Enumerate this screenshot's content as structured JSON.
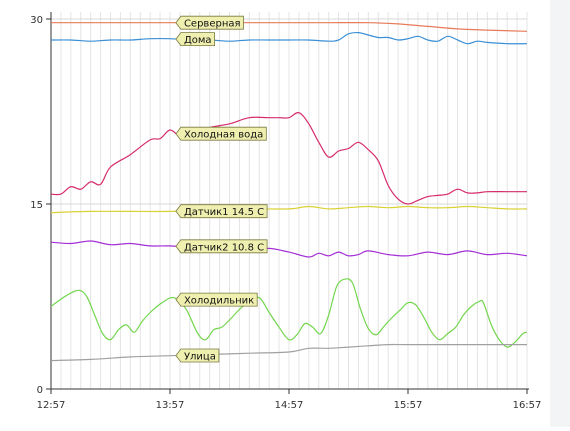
{
  "chart_data": {
    "type": "line",
    "title": "",
    "xlabel": "",
    "ylabel": "",
    "ylim": [
      0,
      30
    ],
    "yticks": [
      0,
      15,
      30
    ],
    "xlim": [
      0,
      240
    ],
    "xticks": [
      {
        "t": 0,
        "label": "12:57"
      },
      {
        "t": 60,
        "label": "13:57"
      },
      {
        "t": 120,
        "label": "14:57"
      },
      {
        "t": 180,
        "label": "15:57"
      },
      {
        "t": 240,
        "label": "16:57"
      }
    ],
    "grid": {
      "vertical_minor": true,
      "horizontal": true
    },
    "legend": "inline-labels",
    "series": [
      {
        "name": "Серверная",
        "color": "#e87a5a",
        "label_t": 63,
        "points": [
          [
            0,
            29.7
          ],
          [
            20,
            29.7
          ],
          [
            40,
            29.7
          ],
          [
            60,
            29.7
          ],
          [
            80,
            29.7
          ],
          [
            100,
            29.7
          ],
          [
            120,
            29.7
          ],
          [
            140,
            29.7
          ],
          [
            160,
            29.7
          ],
          [
            175,
            29.6
          ],
          [
            190,
            29.4
          ],
          [
            205,
            29.2
          ],
          [
            220,
            29.1
          ],
          [
            240,
            29.0
          ]
        ]
      },
      {
        "name": "Дома",
        "color": "#3a8fd6",
        "label_t": 63,
        "points": [
          [
            0,
            28.3
          ],
          [
            10,
            28.3
          ],
          [
            20,
            28.2
          ],
          [
            30,
            28.3
          ],
          [
            40,
            28.3
          ],
          [
            50,
            28.4
          ],
          [
            60,
            28.4
          ],
          [
            70,
            28.3
          ],
          [
            80,
            28.3
          ],
          [
            90,
            28.2
          ],
          [
            100,
            28.3
          ],
          [
            110,
            28.3
          ],
          [
            120,
            28.3
          ],
          [
            130,
            28.3
          ],
          [
            140,
            28.2
          ],
          [
            145,
            28.3
          ],
          [
            150,
            28.8
          ],
          [
            155,
            28.9
          ],
          [
            160,
            28.7
          ],
          [
            165,
            28.5
          ],
          [
            170,
            28.5
          ],
          [
            175,
            28.3
          ],
          [
            180,
            28.4
          ],
          [
            185,
            28.6
          ],
          [
            190,
            28.3
          ],
          [
            195,
            28.2
          ],
          [
            200,
            28.6
          ],
          [
            205,
            28.3
          ],
          [
            210,
            28.0
          ],
          [
            215,
            28.2
          ],
          [
            220,
            28.1
          ],
          [
            230,
            28.0
          ],
          [
            240,
            28.0
          ]
        ]
      },
      {
        "name": "Холодная вода",
        "color": "#d62a6b",
        "label_t": 63,
        "points": [
          [
            0,
            15.8
          ],
          [
            5,
            15.8
          ],
          [
            10,
            16.4
          ],
          [
            15,
            16.2
          ],
          [
            20,
            16.8
          ],
          [
            25,
            16.6
          ],
          [
            30,
            18.0
          ],
          [
            40,
            19.0
          ],
          [
            50,
            20.2
          ],
          [
            55,
            20.3
          ],
          [
            60,
            21.0
          ],
          [
            65,
            20.5
          ],
          [
            70,
            20.7
          ],
          [
            80,
            21.2
          ],
          [
            90,
            21.5
          ],
          [
            100,
            22.0
          ],
          [
            110,
            22.0
          ],
          [
            115,
            22.0
          ],
          [
            120,
            22.0
          ],
          [
            125,
            22.4
          ],
          [
            130,
            21.5
          ],
          [
            135,
            20.0
          ],
          [
            140,
            18.8
          ],
          [
            145,
            19.3
          ],
          [
            150,
            19.5
          ],
          [
            155,
            20.0
          ],
          [
            160,
            19.4
          ],
          [
            165,
            18.5
          ],
          [
            170,
            16.5
          ],
          [
            175,
            15.4
          ],
          [
            180,
            15.0
          ],
          [
            185,
            15.3
          ],
          [
            190,
            15.6
          ],
          [
            195,
            15.7
          ],
          [
            200,
            15.8
          ],
          [
            205,
            16.2
          ],
          [
            210,
            15.9
          ],
          [
            215,
            15.9
          ],
          [
            220,
            16.0
          ],
          [
            230,
            16.0
          ],
          [
            240,
            16.0
          ]
        ]
      },
      {
        "name": "Датчик1 14.5 C",
        "color": "#d8d234",
        "label_t": 63,
        "points": [
          [
            0,
            14.3
          ],
          [
            20,
            14.4
          ],
          [
            40,
            14.4
          ],
          [
            60,
            14.4
          ],
          [
            80,
            14.5
          ],
          [
            100,
            14.6
          ],
          [
            120,
            14.6
          ],
          [
            130,
            14.8
          ],
          [
            140,
            14.6
          ],
          [
            150,
            14.7
          ],
          [
            160,
            14.8
          ],
          [
            170,
            14.7
          ],
          [
            180,
            14.8
          ],
          [
            190,
            14.7
          ],
          [
            200,
            14.7
          ],
          [
            210,
            14.8
          ],
          [
            220,
            14.7
          ],
          [
            230,
            14.6
          ],
          [
            240,
            14.6
          ]
        ]
      },
      {
        "name": "Датчик2 10.8 C",
        "color": "#a42fd6",
        "label_t": 63,
        "points": [
          [
            0,
            11.9
          ],
          [
            10,
            11.8
          ],
          [
            20,
            12.0
          ],
          [
            30,
            11.7
          ],
          [
            40,
            11.8
          ],
          [
            50,
            11.6
          ],
          [
            60,
            11.6
          ],
          [
            70,
            11.5
          ],
          [
            80,
            11.6
          ],
          [
            90,
            11.5
          ],
          [
            100,
            11.3
          ],
          [
            110,
            11.4
          ],
          [
            120,
            11.1
          ],
          [
            130,
            10.7
          ],
          [
            135,
            11.0
          ],
          [
            140,
            10.8
          ],
          [
            145,
            11.1
          ],
          [
            150,
            10.8
          ],
          [
            155,
            10.9
          ],
          [
            160,
            11.2
          ],
          [
            170,
            10.9
          ],
          [
            180,
            10.8
          ],
          [
            190,
            11.1
          ],
          [
            200,
            10.9
          ],
          [
            210,
            11.2
          ],
          [
            220,
            10.9
          ],
          [
            230,
            11.0
          ],
          [
            240,
            10.8
          ]
        ]
      },
      {
        "name": "Холодильник",
        "color": "#73d64d",
        "label_t": 63,
        "points": [
          [
            0,
            6.7
          ],
          [
            8,
            7.6
          ],
          [
            14,
            8.0
          ],
          [
            18,
            7.5
          ],
          [
            22,
            6.0
          ],
          [
            26,
            4.5
          ],
          [
            30,
            4.0
          ],
          [
            34,
            4.8
          ],
          [
            38,
            5.2
          ],
          [
            42,
            4.6
          ],
          [
            46,
            5.5
          ],
          [
            50,
            6.2
          ],
          [
            56,
            7.0
          ],
          [
            62,
            7.4
          ],
          [
            68,
            6.5
          ],
          [
            74,
            4.5
          ],
          [
            78,
            4.0
          ],
          [
            82,
            4.8
          ],
          [
            86,
            5.0
          ],
          [
            90,
            5.6
          ],
          [
            96,
            6.6
          ],
          [
            100,
            7.0
          ],
          [
            105,
            7.4
          ],
          [
            110,
            6.2
          ],
          [
            115,
            5.0
          ],
          [
            120,
            4.0
          ],
          [
            124,
            4.4
          ],
          [
            128,
            5.3
          ],
          [
            132,
            5.0
          ],
          [
            136,
            4.5
          ],
          [
            140,
            6.0
          ],
          [
            144,
            8.3
          ],
          [
            148,
            8.9
          ],
          [
            152,
            8.6
          ],
          [
            156,
            6.5
          ],
          [
            160,
            4.9
          ],
          [
            164,
            4.4
          ],
          [
            168,
            5.1
          ],
          [
            172,
            5.8
          ],
          [
            176,
            6.4
          ],
          [
            180,
            7.0
          ],
          [
            184,
            6.8
          ],
          [
            188,
            5.8
          ],
          [
            192,
            4.6
          ],
          [
            196,
            4.0
          ],
          [
            200,
            4.5
          ],
          [
            204,
            5.0
          ],
          [
            208,
            6.0
          ],
          [
            212,
            6.7
          ],
          [
            216,
            7.1
          ],
          [
            218,
            7.0
          ],
          [
            222,
            5.2
          ],
          [
            226,
            4.0
          ],
          [
            230,
            3.4
          ],
          [
            234,
            3.8
          ],
          [
            238,
            4.5
          ],
          [
            240,
            4.6
          ]
        ]
      },
      {
        "name": "Улица",
        "color": "#a0a0a0",
        "label_t": 63,
        "points": [
          [
            0,
            2.3
          ],
          [
            20,
            2.4
          ],
          [
            40,
            2.6
          ],
          [
            60,
            2.7
          ],
          [
            80,
            2.8
          ],
          [
            100,
            2.9
          ],
          [
            120,
            3.0
          ],
          [
            130,
            3.3
          ],
          [
            140,
            3.3
          ],
          [
            150,
            3.4
          ],
          [
            160,
            3.5
          ],
          [
            170,
            3.6
          ],
          [
            180,
            3.6
          ],
          [
            200,
            3.6
          ],
          [
            220,
            3.6
          ],
          [
            240,
            3.6
          ]
        ]
      }
    ]
  }
}
